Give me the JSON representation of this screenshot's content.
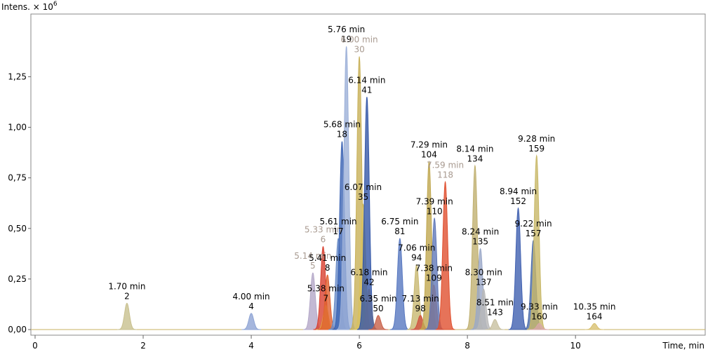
{
  "chart_data": {
    "type": "area",
    "y_label": "Intens. × 10",
    "y_label_exponent": "6",
    "x_label": "Time, min",
    "xlim": [
      0,
      12.4
    ],
    "xticks": [
      0,
      2,
      4,
      6,
      8,
      10
    ],
    "ylim": [
      0,
      1.56
    ],
    "yticks": [
      {
        "value": 0,
        "label": "0,00"
      },
      {
        "value": 0.25,
        "label": "0,25"
      },
      {
        "value": 0.5,
        "label": "0,50"
      },
      {
        "value": 0.75,
        "label": "0,75"
      },
      {
        "value": 1.0,
        "label": "1,00"
      },
      {
        "value": 1.25,
        "label": "1,25"
      }
    ],
    "peaks": [
      {
        "time_label": "1.70 min",
        "id": "2",
        "x": 1.7,
        "y": 0.13,
        "color": "#c8c08e"
      },
      {
        "time_label": "4.00 min",
        "id": "4",
        "x": 4.0,
        "y": 0.08,
        "color": "#8ea4d4"
      },
      {
        "time_label": "5.14 min",
        "id": "5",
        "x": 5.14,
        "y": 0.28,
        "color": "#b4a8c8",
        "muted": true
      },
      {
        "time_label": "5.33 min",
        "id": "6",
        "x": 5.33,
        "y": 0.41,
        "color": "#d84030",
        "muted": true
      },
      {
        "time_label": "5.38 min",
        "id": "7",
        "x": 5.38,
        "y": 0.12,
        "color": "#e0b040"
      },
      {
        "time_label": "5.41 min",
        "id": "8",
        "x": 5.41,
        "y": 0.27,
        "color": "#e06030"
      },
      {
        "time_label": "5.61 min",
        "id": "17",
        "x": 5.61,
        "y": 0.45,
        "color": "#6a8cc8"
      },
      {
        "time_label": "5.68 min",
        "id": "18",
        "x": 5.68,
        "y": 0.93,
        "color": "#3c64b4"
      },
      {
        "time_label": "5.76 min",
        "id": "19",
        "x": 5.76,
        "y": 1.4,
        "color": "#9cb0d8"
      },
      {
        "time_label": "6.00 min",
        "id": "30",
        "x": 6.0,
        "y": 1.35,
        "color": "#c8b058",
        "muted": true
      },
      {
        "time_label": "6.07 min",
        "id": "35",
        "x": 6.07,
        "y": 0.62,
        "color": "#d8c060"
      },
      {
        "time_label": "6.14 min",
        "id": "41",
        "x": 6.14,
        "y": 1.15,
        "color": "#3458a8"
      },
      {
        "time_label": "6.18 min",
        "id": "42",
        "x": 6.18,
        "y": 0.2,
        "color": "#5a6a9a"
      },
      {
        "time_label": "6.35 min",
        "id": "50",
        "x": 6.35,
        "y": 0.07,
        "color": "#c86048"
      },
      {
        "time_label": "6.75 min",
        "id": "81",
        "x": 6.75,
        "y": 0.45,
        "color": "#5878c0"
      },
      {
        "time_label": "7.06 min",
        "id": "94",
        "x": 7.06,
        "y": 0.32,
        "color": "#c8b870"
      },
      {
        "time_label": "7.13 min",
        "id": "98",
        "x": 7.13,
        "y": 0.07,
        "color": "#d05040"
      },
      {
        "time_label": "7.29 min",
        "id": "104",
        "x": 7.29,
        "y": 0.83,
        "color": "#c0a850"
      },
      {
        "time_label": "7.38 min",
        "id": "109",
        "x": 7.38,
        "y": 0.22,
        "color": "#e07030"
      },
      {
        "time_label": "7.39 min",
        "id": "110",
        "x": 7.39,
        "y": 0.55,
        "color": "#6078b8"
      },
      {
        "time_label": "7.59 min",
        "id": "118",
        "x": 7.59,
        "y": 0.73,
        "color": "#e05030",
        "muted": true
      },
      {
        "time_label": "8.14 min",
        "id": "134",
        "x": 8.14,
        "y": 0.81,
        "color": "#c0b070"
      },
      {
        "time_label": "8.24 min",
        "id": "135",
        "x": 8.24,
        "y": 0.4,
        "color": "#9aa8c8"
      },
      {
        "time_label": "8.30 min",
        "id": "137",
        "x": 8.3,
        "y": 0.2,
        "color": "#b8b8b8"
      },
      {
        "time_label": "8.51 min",
        "id": "143",
        "x": 8.51,
        "y": 0.05,
        "color": "#c8c0a0"
      },
      {
        "time_label": "8.94 min",
        "id": "152",
        "x": 8.94,
        "y": 0.6,
        "color": "#4060b0"
      },
      {
        "time_label": "9.22 min",
        "id": "157",
        "x": 9.22,
        "y": 0.44,
        "color": "#4a6aa8"
      },
      {
        "time_label": "9.28 min",
        "id": "159",
        "x": 9.28,
        "y": 0.86,
        "color": "#c8b868"
      },
      {
        "time_label": "9.33 min",
        "id": "160",
        "x": 9.33,
        "y": 0.03,
        "color": "#d8a8a8"
      },
      {
        "time_label": "10.35 min",
        "id": "164",
        "x": 10.35,
        "y": 0.03,
        "color": "#d8c070"
      }
    ]
  }
}
